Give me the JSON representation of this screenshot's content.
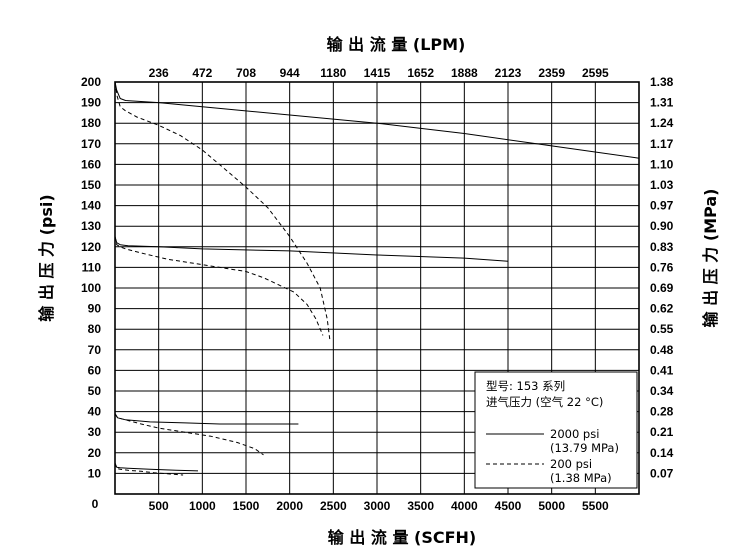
{
  "chart_data": {
    "type": "line",
    "title": "",
    "top_axis": {
      "label": "输 出 流 量 (LPM)",
      "ticks": [
        "236",
        "472",
        "708",
        "944",
        "1180",
        "1415",
        "1652",
        "1888",
        "2123",
        "2359",
        "2595"
      ]
    },
    "bottom_axis": {
      "label": "输 出 流 量 (SCFH)",
      "ticks": [
        "500",
        "1000",
        "1500",
        "2000",
        "2500",
        "3000",
        "3500",
        "4000",
        "4500",
        "5000",
        "5500"
      ],
      "origin_label": "0",
      "range": [
        0,
        6000
      ]
    },
    "left_axis": {
      "label": "输 出 压 力 (psi)",
      "ticks": [
        "10",
        "20",
        "30",
        "40",
        "50",
        "60",
        "70",
        "80",
        "90",
        "100",
        "110",
        "120",
        "130",
        "140",
        "150",
        "160",
        "170",
        "180",
        "190",
        "200"
      ],
      "range": [
        0,
        200
      ]
    },
    "right_axis": {
      "label": "输 出 压 力 (MPa)",
      "ticks": [
        "0.07",
        "0.14",
        "0.21",
        "0.28",
        "0.34",
        "0.41",
        "0.48",
        "0.55",
        "0.62",
        "0.69",
        "0.76",
        "0.83",
        "0.90",
        "0.97",
        "1.03",
        "1.10",
        "1.17",
        "1.24",
        "1.31",
        "1.38"
      ]
    },
    "grid": true,
    "legend": {
      "position": "bottom-right",
      "model_line": "型号: 153 系列",
      "inlet_line": "进气压力 (空气 22 °C)",
      "entries": [
        {
          "style": "solid",
          "line1": "2000 psi",
          "line2": "(13.79 MPa)"
        },
        {
          "style": "dashed",
          "line1": "200 psi",
          "line2": "(1.38 MPa)"
        }
      ]
    },
    "series": [
      {
        "inlet": "2000 psi",
        "style": "solid",
        "x": [
          0,
          20,
          60,
          120,
          500,
          1000,
          2000,
          3000,
          4000,
          5000,
          6000
        ],
        "y": [
          200,
          196,
          192,
          191,
          190,
          188,
          184,
          180,
          175,
          169,
          163
        ]
      },
      {
        "inlet": "200 psi",
        "style": "dashed",
        "x": [
          0,
          25,
          60,
          120,
          250,
          500,
          750,
          1000,
          1250,
          1500,
          1750,
          2000,
          2200,
          2350,
          2430,
          2460
        ],
        "y": [
          200,
          193,
          188,
          186,
          183,
          179,
          174,
          167,
          158,
          149,
          139,
          125,
          112,
          100,
          85,
          75
        ]
      },
      {
        "inlet": "2000 psi",
        "style": "solid",
        "x": [
          0,
          20,
          60,
          150,
          500,
          1000,
          2000,
          3000,
          4000,
          4500
        ],
        "y": [
          125,
          122,
          121,
          120.5,
          120,
          119,
          118,
          116,
          114.5,
          113
        ]
      },
      {
        "inlet": "200 psi",
        "style": "dashed",
        "x": [
          0,
          20,
          60,
          120,
          300,
          600,
          900,
          1200,
          1500,
          1700,
          1900,
          2050,
          2200,
          2300,
          2380
        ],
        "y": [
          125,
          121,
          120,
          119,
          117,
          114,
          112,
          110,
          108,
          105,
          101,
          98,
          92,
          85,
          77
        ]
      },
      {
        "inlet": "2000 psi",
        "style": "solid",
        "x": [
          0,
          30,
          120,
          400,
          800,
          1200,
          1600,
          2100
        ],
        "y": [
          39,
          37,
          36,
          35,
          34.5,
          34,
          34,
          34
        ]
      },
      {
        "inlet": "200 psi",
        "style": "dashed",
        "x": [
          0,
          30,
          120,
          300,
          500,
          800,
          1100,
          1400,
          1600,
          1700
        ],
        "y": [
          39,
          37,
          36,
          34,
          32,
          30,
          28,
          25,
          22,
          19
        ]
      },
      {
        "inlet": "2000 psi",
        "style": "solid",
        "x": [
          0,
          20,
          60,
          150,
          400,
          700,
          950
        ],
        "y": [
          15,
          13,
          12.7,
          12.5,
          12,
          11.5,
          11.2
        ]
      },
      {
        "inlet": "200 psi",
        "style": "dashed",
        "x": [
          0,
          20,
          60,
          150,
          300,
          450,
          600,
          780
        ],
        "y": [
          15,
          12.5,
          12,
          11.5,
          11,
          10.3,
          9.8,
          9.2
        ]
      }
    ]
  }
}
